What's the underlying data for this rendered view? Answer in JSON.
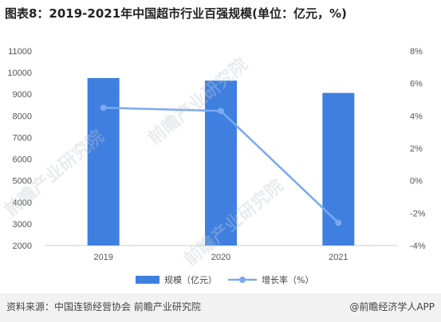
{
  "header": {
    "title": "图表8：2019-2021年中国超市行业百强规模(单位：亿元，%)"
  },
  "footer": {
    "source": "资料来源：中国连锁经营协会 前瞻产业研究院",
    "brand": "@前瞻经济学人APP"
  },
  "colors": {
    "bar": "#3f7fe0",
    "line": "#7aa9f2",
    "axis": "#cccccc",
    "tick_text": "#555555"
  },
  "chart_data": {
    "type": "bar",
    "categories": [
      "2019",
      "2020",
      "2021"
    ],
    "series": [
      {
        "name": "规模（亿元）",
        "type": "bar",
        "axis": "left",
        "values": [
          9750,
          9630,
          9060
        ]
      },
      {
        "name": "增长率（%）",
        "type": "line",
        "axis": "right",
        "values": [
          4.5,
          4.3,
          -2.6
        ]
      }
    ],
    "y_left": {
      "min": 2000,
      "max": 11000,
      "ticks": [
        "2000",
        "3000",
        "4000",
        "5000",
        "6000",
        "7000",
        "8000",
        "9000",
        "10000",
        "11000"
      ]
    },
    "y_right": {
      "min": -4,
      "max": 8,
      "ticks": [
        "-4%",
        "-2%",
        "0%",
        "2%",
        "4%",
        "6%",
        "8%"
      ]
    },
    "legend_position": "bottom",
    "grid": false
  }
}
